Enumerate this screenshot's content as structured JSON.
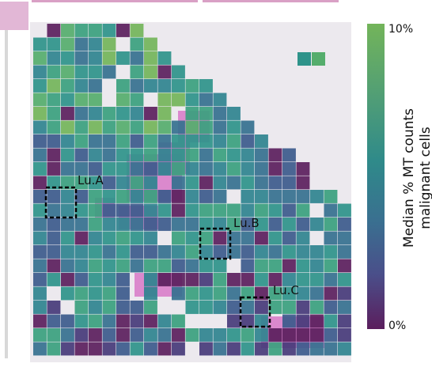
{
  "regions": [
    {
      "name": "Lu.A"
    },
    {
      "name": "Lu.B"
    },
    {
      "name": "Lu.C"
    }
  ],
  "colorbar": {
    "title_line1": "Median % MT counts",
    "title_line2": "malignant cells",
    "max_label": "10%",
    "min_label": "0%"
  },
  "colors": {
    "high": "#73b45a",
    "mid": "#2f8a8a",
    "low": "#5b1e5d",
    "tissue_pink": "#d771c4"
  }
}
